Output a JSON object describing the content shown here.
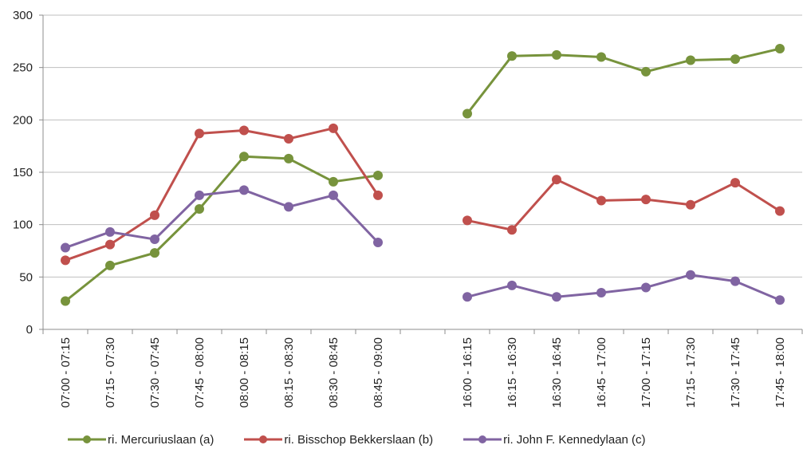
{
  "chart_data": {
    "type": "line",
    "categories": [
      "07:00 - 07:15",
      "07:15 - 07:30",
      "07:30 - 07:45",
      "07:45 - 08:00",
      "08:00 - 08:15",
      "08:15 - 08:30",
      "08:30 - 08:45",
      "08:45 - 09:00",
      "",
      "16:00 - 16:15",
      "16:15 - 16:30",
      "16:30 - 16:45",
      "16:45 - 17:00",
      "17:00 - 17:15",
      "17:15 - 17:30",
      "17:30 - 17:45",
      "17:45 - 18:00"
    ],
    "series": [
      {
        "name": "ri. Mercuriuslaan (a)",
        "color": "#77933c",
        "values": [
          27,
          61,
          73,
          115,
          165,
          163,
          141,
          147,
          null,
          206,
          261,
          262,
          260,
          246,
          257,
          258,
          268
        ]
      },
      {
        "name": "ri. Bisschop Bekkerslaan (b)",
        "color": "#c0504d",
        "values": [
          66,
          81,
          109,
          187,
          190,
          182,
          192,
          128,
          null,
          104,
          95,
          143,
          123,
          124,
          119,
          140,
          113
        ]
      },
      {
        "name": "ri. John F. Kennedylaan (c)",
        "color": "#8064a2",
        "values": [
          78,
          93,
          86,
          128,
          133,
          117,
          128,
          83,
          null,
          31,
          42,
          31,
          35,
          40,
          52,
          46,
          28
        ]
      }
    ],
    "yticks": [
      0,
      50,
      100,
      150,
      200,
      250,
      300
    ],
    "ylim": [
      0,
      300
    ],
    "grid": true,
    "legend_position": "bottom"
  }
}
